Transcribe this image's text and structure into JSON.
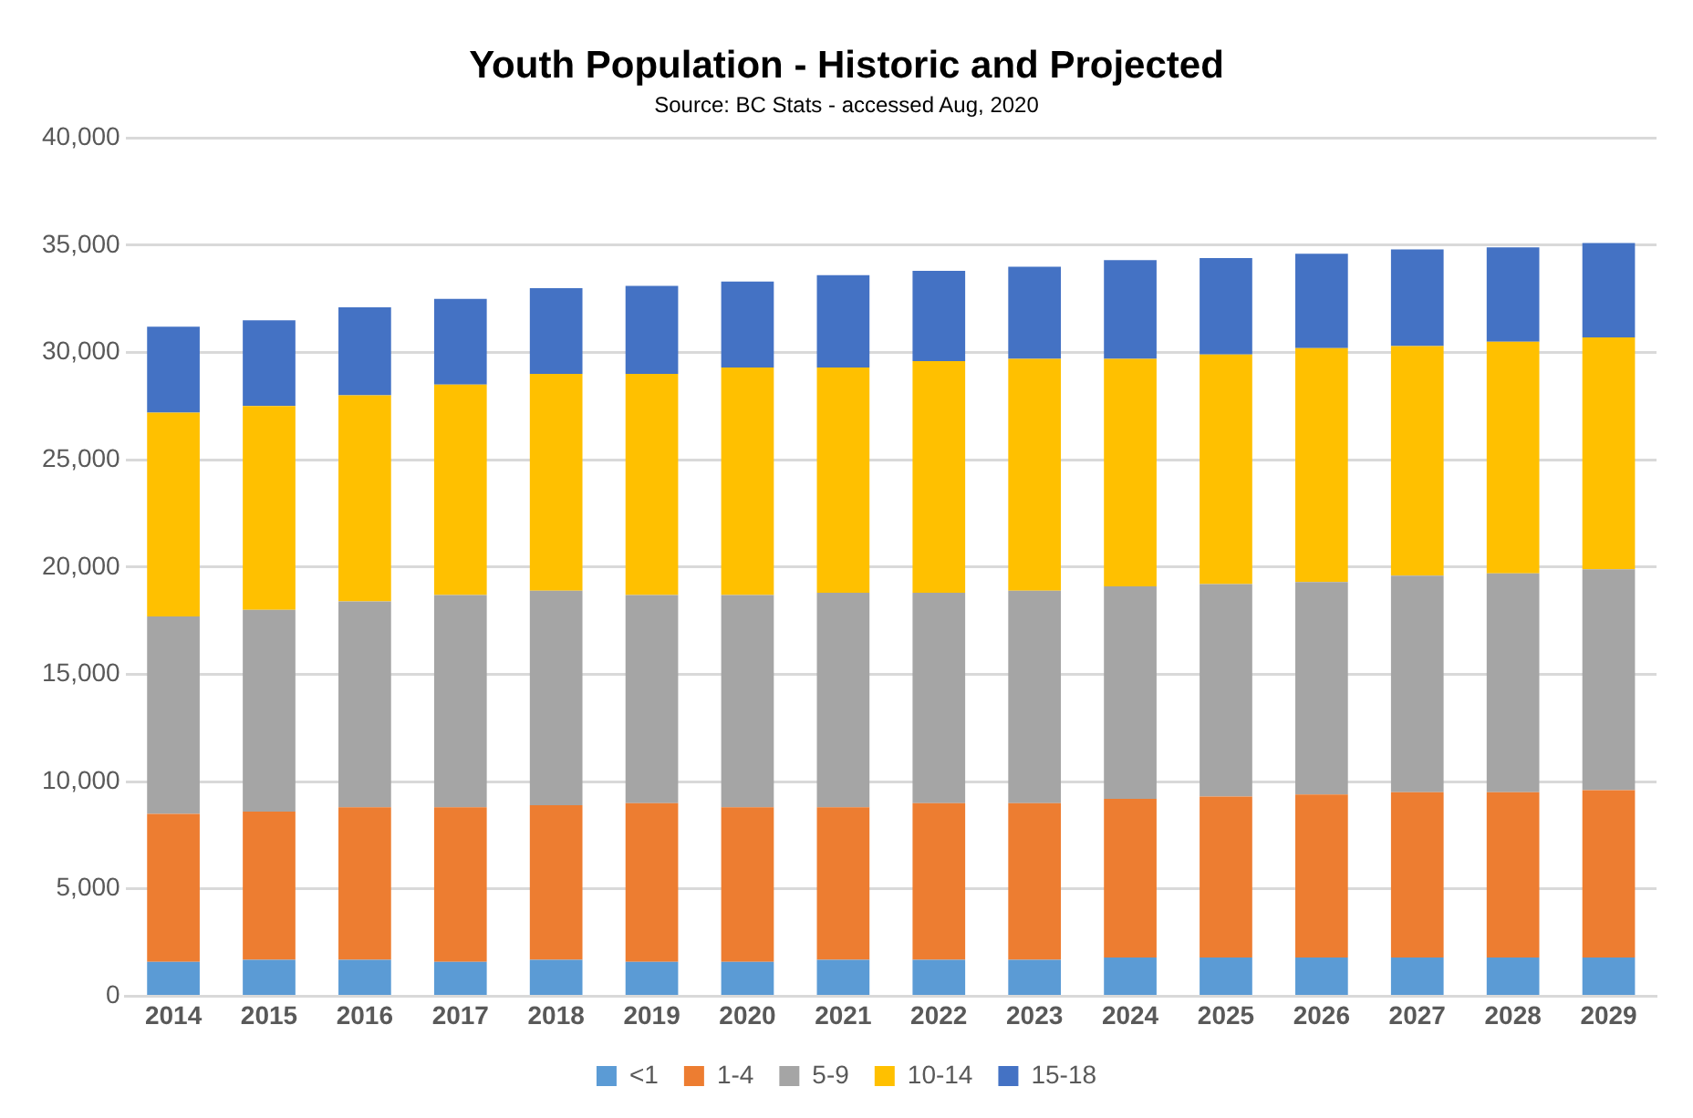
{
  "chart_data": {
    "type": "bar",
    "stacked": true,
    "title": "Youth Population - Historic and Projected",
    "subtitle": "Source: BC Stats - accessed Aug, 2020",
    "categories": [
      "2014",
      "2015",
      "2016",
      "2017",
      "2018",
      "2019",
      "2020",
      "2021",
      "2022",
      "2023",
      "2024",
      "2025",
      "2026",
      "2027",
      "2028",
      "2029"
    ],
    "series": [
      {
        "name": "<1",
        "color": "#5b9bd5",
        "values": [
          1600,
          1700,
          1700,
          1600,
          1700,
          1600,
          1600,
          1700,
          1700,
          1700,
          1800,
          1800,
          1800,
          1800,
          1800,
          1800
        ]
      },
      {
        "name": "1-4",
        "color": "#ed7d31",
        "values": [
          6900,
          6900,
          7100,
          7200,
          7200,
          7400,
          7200,
          7100,
          7300,
          7300,
          7400,
          7500,
          7600,
          7700,
          7700,
          7800
        ]
      },
      {
        "name": "5-9",
        "color": "#a5a5a5",
        "values": [
          9200,
          9400,
          9600,
          9900,
          10000,
          9700,
          9900,
          10000,
          9800,
          9900,
          9900,
          9900,
          9900,
          10100,
          10200,
          10300
        ]
      },
      {
        "name": "10-14",
        "color": "#ffc000",
        "values": [
          9500,
          9500,
          9600,
          9800,
          10100,
          10300,
          10600,
          10500,
          10800,
          10800,
          10600,
          10700,
          10900,
          10700,
          10800,
          10800
        ]
      },
      {
        "name": "15-18",
        "color": "#4472c4",
        "values": [
          4000,
          4000,
          4100,
          4000,
          4000,
          4100,
          4000,
          4300,
          4200,
          4300,
          4600,
          4500,
          4400,
          4500,
          4400,
          4400
        ]
      }
    ],
    "ylim": [
      0,
      40000
    ],
    "yticks": [
      0,
      {
        "value": 5000,
        "label": "5,000"
      },
      {
        "value": 10000,
        "label": "10,000"
      },
      {
        "value": 15000,
        "label": "15,000"
      },
      {
        "value": 20000,
        "label": "20,000"
      },
      {
        "value": 25000,
        "label": "25,000"
      },
      {
        "value": 30000,
        "label": "30,000"
      },
      {
        "value": 35000,
        "label": "35,000"
      },
      {
        "value": 40000,
        "label": "40,000"
      }
    ],
    "grid": "y",
    "legend": "bottom"
  }
}
